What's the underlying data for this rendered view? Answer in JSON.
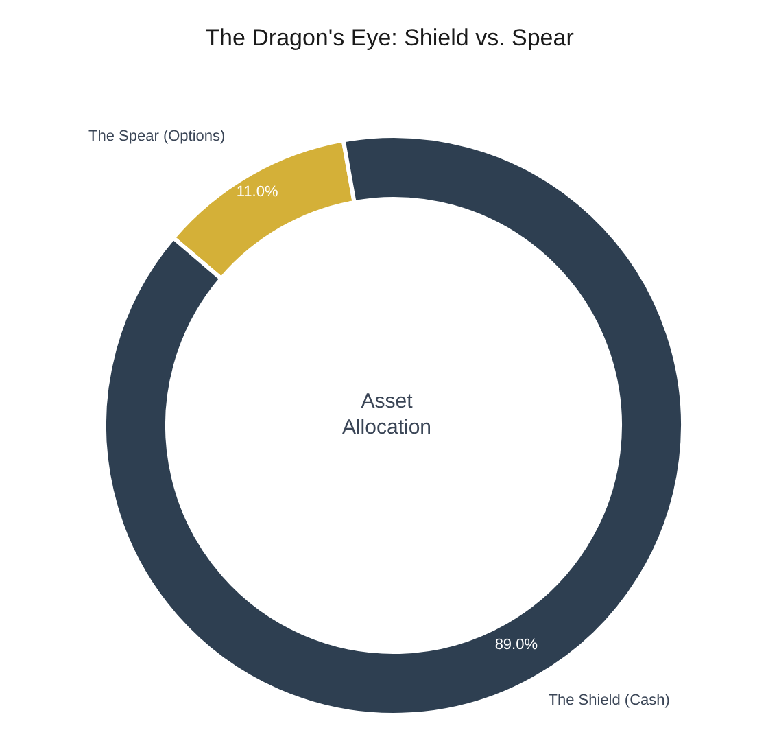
{
  "chart_data": {
    "type": "donut",
    "title": "The Dragon's Eye: Shield vs. Spear",
    "categories": [
      "The Spear (Options)",
      "The Shield (Cash)"
    ],
    "values": [
      11.0,
      89.0
    ],
    "colors": [
      "#d4b038",
      "#2e3f51"
    ],
    "value_labels": [
      "11.0%",
      "89.0%"
    ],
    "annotations": [
      "Asset Allocation"
    ]
  }
}
